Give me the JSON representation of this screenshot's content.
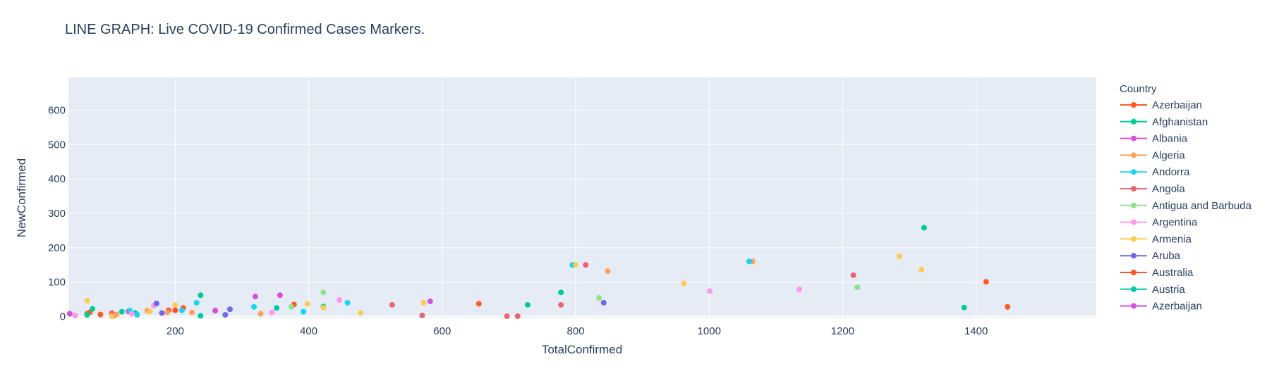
{
  "chart_data": {
    "type": "scatter",
    "title": "LINE GRAPH: Live COVID-19 Confirmed Cases Markers.",
    "xlabel": "TotalConfirmed",
    "ylabel": "NewConfirmed",
    "xlim": [
      40,
      1580
    ],
    "ylim": [
      -5,
      695
    ],
    "x_ticks": [
      "200",
      "400",
      "600",
      "800",
      "1000",
      "1200",
      "1400"
    ],
    "y_ticks": [
      "0",
      "100",
      "200",
      "300",
      "400",
      "500",
      "600"
    ],
    "x_tick_values": [
      200,
      400,
      600,
      800,
      1000,
      1200,
      1400
    ],
    "y_tick_values": [
      0,
      100,
      200,
      300,
      400,
      500,
      600
    ],
    "grid": true,
    "plot_bgcolor": "#e5ecf6",
    "legend_position": "right",
    "legend_title": "Country",
    "series": [
      {
        "name": " Azerbaijan",
        "color": "#ff5a1f",
        "points": [
          [
            68,
            8
          ],
          [
            72,
            12
          ],
          [
            88,
            6
          ],
          [
            108,
            3
          ],
          [
            190,
            18
          ],
          [
            212,
            25
          ],
          [
            378,
            35
          ],
          [
            655,
            37
          ],
          [
            1415,
            101
          ],
          [
            1447,
            28
          ]
        ]
      },
      {
        "name": "Afghanistan",
        "color": "#00cc96",
        "points": [
          [
            68,
            5
          ],
          [
            76,
            22
          ],
          [
            120,
            14
          ],
          [
            140,
            10
          ],
          [
            238,
            62
          ],
          [
            352,
            25
          ],
          [
            422,
            29
          ],
          [
            728,
            34
          ],
          [
            778,
            70
          ],
          [
            1322,
            258
          ],
          [
            1382,
            26
          ]
        ]
      },
      {
        "name": "Albania",
        "color": "#d84fd8",
        "points": [
          [
            42,
            8
          ],
          [
            130,
            15
          ],
          [
            260,
            17
          ],
          [
            320,
            58
          ],
          [
            357,
            62
          ],
          [
            582,
            44
          ]
        ]
      },
      {
        "name": "Algeria",
        "color": "#ffa15a",
        "points": [
          [
            112,
            6
          ],
          [
            158,
            17
          ],
          [
            188,
            12
          ],
          [
            225,
            12
          ],
          [
            328,
            8
          ],
          [
            848,
            132
          ],
          [
            1065,
            160
          ]
        ]
      },
      {
        "name": "Andorra",
        "color": "#19d3f3",
        "points": [
          [
            132,
            17
          ],
          [
            143,
            5
          ],
          [
            210,
            18
          ],
          [
            232,
            40
          ],
          [
            318,
            28
          ],
          [
            392,
            14
          ],
          [
            458,
            40
          ],
          [
            795,
            150
          ],
          [
            1060,
            160
          ]
        ]
      },
      {
        "name": "Angola",
        "color": "#ef6370",
        "points": [
          [
            105,
            10
          ],
          [
            525,
            34
          ],
          [
            570,
            3
          ],
          [
            697,
            1
          ],
          [
            713,
            1
          ],
          [
            778,
            34
          ],
          [
            815,
            150
          ],
          [
            1216,
            120
          ]
        ]
      },
      {
        "name": "Antigua and Barbuda",
        "color": "#8fe08a",
        "points": [
          [
            374,
            28
          ],
          [
            422,
            70
          ],
          [
            835,
            54
          ],
          [
            1222,
            85
          ]
        ]
      },
      {
        "name": "Argentina",
        "color": "#ff97e6",
        "points": [
          [
            50,
            3
          ],
          [
            135,
            8
          ],
          [
            168,
            32
          ],
          [
            345,
            12
          ],
          [
            446,
            48
          ],
          [
            1001,
            74
          ],
          [
            1135,
            79
          ]
        ]
      },
      {
        "name": "Armenia",
        "color": "#fecb52",
        "points": [
          [
            68,
            46
          ],
          [
            105,
            1
          ],
          [
            162,
            14
          ],
          [
            200,
            33
          ],
          [
            398,
            37
          ],
          [
            422,
            26
          ],
          [
            478,
            10
          ],
          [
            572,
            40
          ],
          [
            800,
            150
          ],
          [
            962,
            96
          ],
          [
            1285,
            175
          ],
          [
            1318,
            136
          ]
        ]
      },
      {
        "name": "Aruba",
        "color": "#6e67ef",
        "points": [
          [
            172,
            38
          ],
          [
            180,
            10
          ],
          [
            275,
            5
          ],
          [
            282,
            21
          ],
          [
            842,
            40
          ]
        ]
      },
      {
        "name": "Australia",
        "color": "#ff5326",
        "points": [
          [
            200,
            18
          ]
        ]
      },
      {
        "name": "Austria",
        "color": "#00c9a8",
        "points": [
          [
            238,
            2
          ]
        ]
      },
      {
        "name": "Azerbaijan",
        "color": "#d84fd8",
        "points": []
      }
    ]
  }
}
